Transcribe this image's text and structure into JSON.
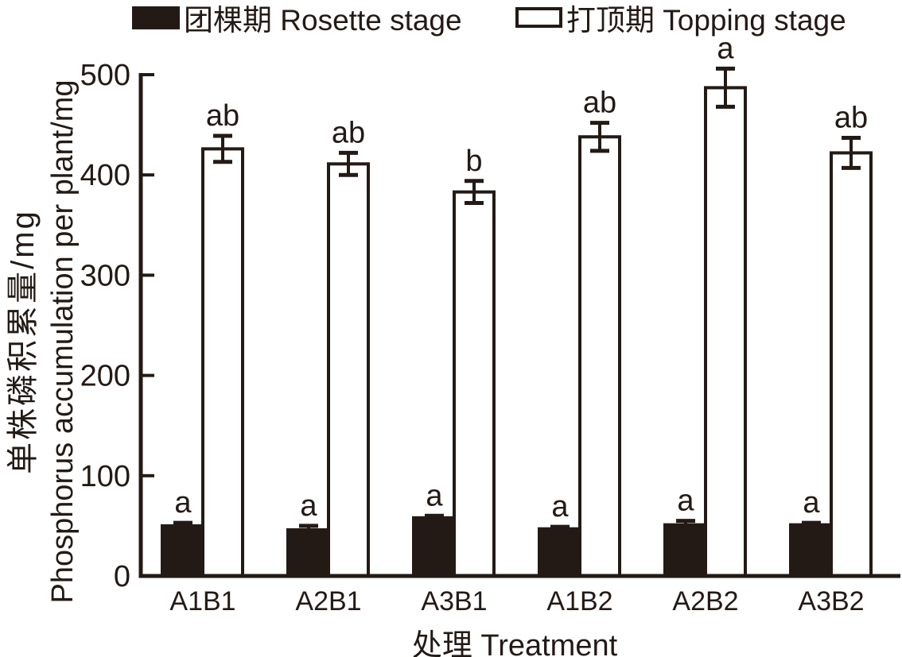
{
  "colors": {
    "ink": "#231a16",
    "open_bar_fill": "#ffffff",
    "background": "#ffffff"
  },
  "chart_data": {
    "type": "bar",
    "title": "",
    "categories": [
      "A1B1",
      "A2B1",
      "A3B1",
      "A1B2",
      "A2B2",
      "A3B2"
    ],
    "series": [
      {
        "name": "团棵期 Rosette stage",
        "style": "filled",
        "values": [
          50,
          46,
          58,
          47,
          51,
          51
        ],
        "errors": [
          3,
          4,
          2,
          2,
          4,
          2
        ],
        "sig_letters": [
          "a",
          "a",
          "a",
          "a",
          "a",
          "a"
        ]
      },
      {
        "name": "打顶期 Topping stage",
        "style": "open",
        "values": [
          426,
          411,
          383,
          438,
          487,
          422
        ],
        "errors": [
          13,
          11,
          11,
          14,
          19,
          15
        ],
        "sig_letters": [
          "ab",
          "ab",
          "b",
          "ab",
          "a",
          "ab"
        ]
      }
    ],
    "xlabel": "处理 Treatment",
    "ylabel_zh": "单株磷积累量/mg",
    "ylabel_en": "Phosphorus accumulation per plant/mg",
    "ylim": [
      0,
      500
    ],
    "yticks": [
      0,
      100,
      200,
      300,
      400,
      500
    ],
    "legend_position": "top",
    "grid": false,
    "error_bars": "symmetric",
    "annotation_style": "significance letters above error bars"
  }
}
